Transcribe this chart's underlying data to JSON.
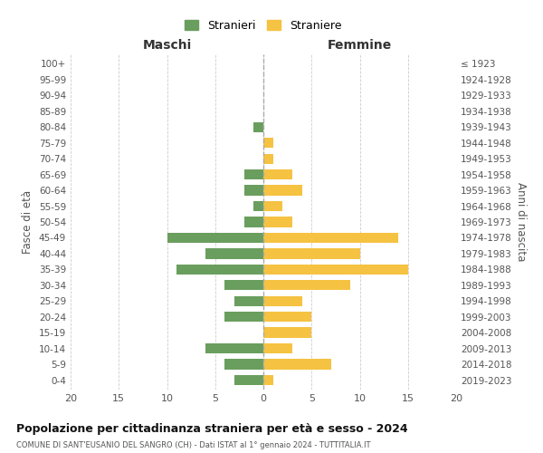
{
  "age_groups": [
    "0-4",
    "5-9",
    "10-14",
    "15-19",
    "20-24",
    "25-29",
    "30-34",
    "35-39",
    "40-44",
    "45-49",
    "50-54",
    "55-59",
    "60-64",
    "65-69",
    "70-74",
    "75-79",
    "80-84",
    "85-89",
    "90-94",
    "95-99",
    "100+"
  ],
  "birth_years": [
    "2019-2023",
    "2014-2018",
    "2009-2013",
    "2004-2008",
    "1999-2003",
    "1994-1998",
    "1989-1993",
    "1984-1988",
    "1979-1983",
    "1974-1978",
    "1969-1973",
    "1964-1968",
    "1959-1963",
    "1954-1958",
    "1949-1953",
    "1944-1948",
    "1939-1943",
    "1934-1938",
    "1929-1933",
    "1924-1928",
    "≤ 1923"
  ],
  "males": [
    3,
    4,
    6,
    0,
    4,
    3,
    4,
    9,
    6,
    10,
    2,
    1,
    2,
    2,
    0,
    0,
    1,
    0,
    0,
    0,
    0
  ],
  "females": [
    1,
    7,
    3,
    5,
    5,
    4,
    9,
    15,
    10,
    14,
    3,
    2,
    4,
    3,
    1,
    1,
    0,
    0,
    0,
    0,
    0
  ],
  "male_color": "#6a9e5e",
  "female_color": "#f5c242",
  "title": "Popolazione per cittadinanza straniera per età e sesso - 2024",
  "subtitle": "COMUNE DI SANT'EUSANIO DEL SANGRO (CH) - Dati ISTAT al 1° gennaio 2024 - TUTTITALIA.IT",
  "xlabel_left": "Maschi",
  "xlabel_right": "Femmine",
  "ylabel_left": "Fasce di età",
  "ylabel_right": "Anni di nascita",
  "legend_stranieri": "Stranieri",
  "legend_straniere": "Straniere",
  "xlim": 20,
  "background_color": "#ffffff",
  "grid_color": "#cccccc"
}
